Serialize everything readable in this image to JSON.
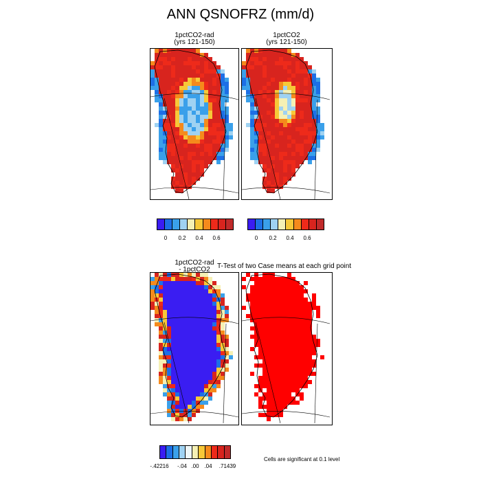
{
  "figure": {
    "title": "ANN QSNOFRZ (mm/d)",
    "panels": [
      {
        "id": "p1",
        "title1": "1pctCO2-rad",
        "title2": "(yrs 121-150)",
        "variant": "case"
      },
      {
        "id": "p2",
        "title1": "1pctCO2",
        "title2": "(yrs 121-150)",
        "variant": "case"
      },
      {
        "id": "p3",
        "title1": "1pctCO2-rad",
        "title2": "- 1pctCO2",
        "variant": "diff"
      },
      {
        "id": "p4",
        "title1": "T-Test of two Case means at each grid point",
        "title2": "",
        "variant": "ttest"
      }
    ],
    "colorbar_case": {
      "colors": [
        "#3a1df2",
        "#1d6fe6",
        "#3aa0ea",
        "#9fd2f2",
        "#f5f0b4",
        "#f7c838",
        "#f58a1c",
        "#ee2a1a",
        "#d8241e",
        "#c02a2a"
      ],
      "labels": [
        "0",
        "0.2",
        "0.4",
        "0.6"
      ]
    },
    "colorbar_diff": {
      "colors": [
        "#3a1df2",
        "#1d6fe6",
        "#3aa0ea",
        "#9fd2f2",
        "#eef7f8",
        "#f5f0b4",
        "#f7c838",
        "#f58a1c",
        "#ee2a1a",
        "#d8241e",
        "#c02a2a"
      ],
      "labels": [
        "-.42216",
        "-.04",
        ".00",
        ".04",
        ".71439"
      ]
    },
    "significance_note": "Cells are significant at 0.1 level",
    "map_colors": {
      "ocean": "#ffffff",
      "coast": "#000000",
      "sig": "#ff0000"
    }
  }
}
